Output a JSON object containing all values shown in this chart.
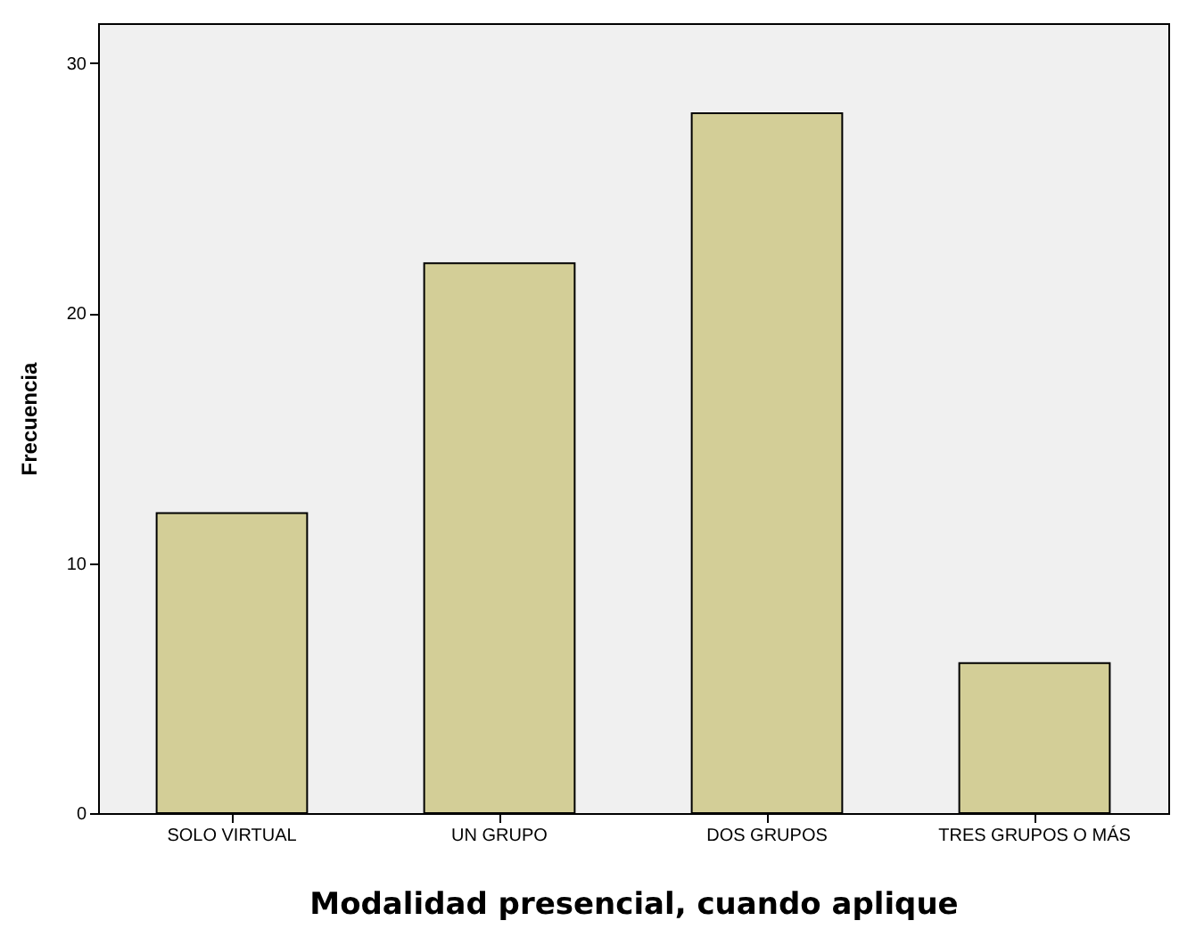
{
  "chart_data": {
    "type": "bar",
    "xlabel": "Modalidad presencial, cuando aplique",
    "ylabel": "Frecuencia",
    "categories": [
      "SOLO VIRTUAL",
      "UN GRUPO",
      "DOS GRUPOS",
      "TRES GRUPOS O MÁS"
    ],
    "values": [
      12,
      22,
      28,
      6
    ],
    "color": "#d3ce97",
    "ylim": [
      0,
      31.6
    ],
    "yticks": [
      0,
      10,
      20,
      30
    ],
    "grid": false
  }
}
